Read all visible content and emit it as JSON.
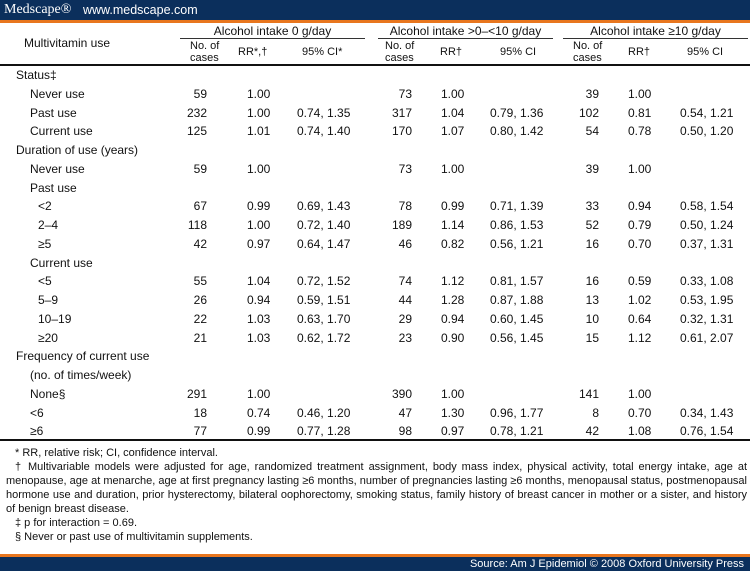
{
  "header": {
    "logo": "Medscape®",
    "url": "www.medscape.com"
  },
  "table": {
    "row_header": "Multivitamin use",
    "groups": [
      "Alcohol intake 0 g/day",
      "Alcohol intake >0–<10 g/day",
      "Alcohol intake ≥10 g/day"
    ],
    "subheaders": [
      [
        "No. of",
        "cases",
        "RR*,†",
        "95% CI*"
      ],
      [
        "No. of",
        "cases",
        "RR†",
        "95% CI"
      ],
      [
        "No. of",
        "cases",
        "RR†",
        "95% CI"
      ]
    ],
    "rows": [
      {
        "label": "Status‡",
        "level": 0,
        "cells": [
          "",
          "",
          "",
          "",
          "",
          "",
          "",
          "",
          ""
        ]
      },
      {
        "label": "Never use",
        "level": 1,
        "cells": [
          "59",
          "1.00",
          "",
          "73",
          "1.00",
          "",
          "39",
          "1.00",
          ""
        ]
      },
      {
        "label": "Past use",
        "level": 1,
        "cells": [
          "232",
          "1.00",
          "0.74, 1.35",
          "317",
          "1.04",
          "0.79, 1.36",
          "102",
          "0.81",
          "0.54, 1.21"
        ]
      },
      {
        "label": "Current use",
        "level": 1,
        "cells": [
          "125",
          "1.01",
          "0.74, 1.40",
          "170",
          "1.07",
          "0.80, 1.42",
          "54",
          "0.78",
          "0.50, 1.20"
        ]
      },
      {
        "label": "Duration of use (years)",
        "level": 0,
        "cells": [
          "",
          "",
          "",
          "",
          "",
          "",
          "",
          "",
          ""
        ]
      },
      {
        "label": "Never use",
        "level": 1,
        "cells": [
          "59",
          "1.00",
          "",
          "73",
          "1.00",
          "",
          "39",
          "1.00",
          ""
        ]
      },
      {
        "label": "Past use",
        "level": 1,
        "cells": [
          "",
          "",
          "",
          "",
          "",
          "",
          "",
          "",
          ""
        ]
      },
      {
        "label": "<2",
        "level": 2,
        "cells": [
          "67",
          "0.99",
          "0.69, 1.43",
          "78",
          "0.99",
          "0.71, 1.39",
          "33",
          "0.94",
          "0.58, 1.54"
        ]
      },
      {
        "label": "2–4",
        "level": 2,
        "cells": [
          "118",
          "1.00",
          "0.72, 1.40",
          "189",
          "1.14",
          "0.86, 1.53",
          "52",
          "0.79",
          "0.50, 1.24"
        ]
      },
      {
        "label": "≥5",
        "level": 2,
        "cells": [
          "42",
          "0.97",
          "0.64, 1.47",
          "46",
          "0.82",
          "0.56, 1.21",
          "16",
          "0.70",
          "0.37, 1.31"
        ]
      },
      {
        "label": "Current use",
        "level": 1,
        "cells": [
          "",
          "",
          "",
          "",
          "",
          "",
          "",
          "",
          ""
        ]
      },
      {
        "label": "<5",
        "level": 2,
        "cells": [
          "55",
          "1.04",
          "0.72, 1.52",
          "74",
          "1.12",
          "0.81, 1.57",
          "16",
          "0.59",
          "0.33, 1.08"
        ]
      },
      {
        "label": "5–9",
        "level": 2,
        "cells": [
          "26",
          "0.94",
          "0.59, 1.51",
          "44",
          "1.28",
          "0.87, 1.88",
          "13",
          "1.02",
          "0.53, 1.95"
        ]
      },
      {
        "label": "10–19",
        "level": 2,
        "cells": [
          "22",
          "1.03",
          "0.63, 1.70",
          "29",
          "0.94",
          "0.60, 1.45",
          "10",
          "0.64",
          "0.32, 1.31"
        ]
      },
      {
        "label": "≥20",
        "level": 2,
        "cells": [
          "21",
          "1.03",
          "0.62, 1.72",
          "23",
          "0.90",
          "0.56, 1.45",
          "15",
          "1.12",
          "0.61, 2.07"
        ]
      },
      {
        "label": "Frequency of current use",
        "level": 0,
        "cells": [
          "",
          "",
          "",
          "",
          "",
          "",
          "",
          "",
          ""
        ]
      },
      {
        "label": "(no. of times/week)",
        "level": 1,
        "cells": [
          "",
          "",
          "",
          "",
          "",
          "",
          "",
          "",
          ""
        ]
      },
      {
        "label": "None§",
        "level": 1,
        "cells": [
          "291",
          "1.00",
          "",
          "390",
          "1.00",
          "",
          "141",
          "1.00",
          ""
        ]
      },
      {
        "label": "<6",
        "level": 1,
        "cells": [
          "18",
          "0.74",
          "0.46, 1.20",
          "47",
          "1.30",
          "0.96, 1.77",
          "8",
          "0.70",
          "0.34, 1.43"
        ]
      },
      {
        "label": "≥6",
        "level": 1,
        "cells": [
          "77",
          "0.99",
          "0.77, 1.28",
          "98",
          "0.97",
          "0.78, 1.21",
          "42",
          "1.08",
          "0.76, 1.54"
        ]
      }
    ]
  },
  "footnotes": [
    "* RR, relative risk; CI, confidence interval.",
    "† Multivariable models were adjusted for age, randomized treatment assignment, body mass index, physical activity, total energy intake, age at menopause, age at menarche, age at first pregnancy lasting ≥6 months, number of pregnancies lasting ≥6 months, menopausal status, postmenopausal hormone use and duration, prior hysterectomy, bilateral oophorectomy, smoking status, family history of breast cancer in mother or a sister, and history of benign breast disease.",
    "‡ p for interaction = 0.69.",
    "§ Never or past use of multivitamin supplements."
  ],
  "footer": {
    "source": "Source: Am J Epidemiol © 2008 Oxford University Press"
  }
}
